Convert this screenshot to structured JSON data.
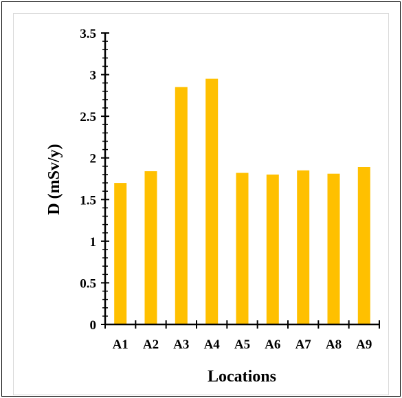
{
  "chart_data": {
    "type": "bar",
    "title": "",
    "xlabel": "Locations",
    "ylabel": "D  (mSv/y)",
    "categories": [
      "A1",
      "A2",
      "A3",
      "A4",
      "A5",
      "A6",
      "A7",
      "A8",
      "A9"
    ],
    "values": [
      1.7,
      1.84,
      2.85,
      2.95,
      1.82,
      1.8,
      1.85,
      1.81,
      1.89
    ],
    "ylim": [
      0,
      3.5
    ],
    "yticks": [
      "0",
      "0.5",
      "1",
      "1.5",
      "2",
      "2.5",
      "3",
      "3.5"
    ],
    "grid": false,
    "legend": "none",
    "bar_color": "#FFC000",
    "axis_color": "#000000"
  }
}
